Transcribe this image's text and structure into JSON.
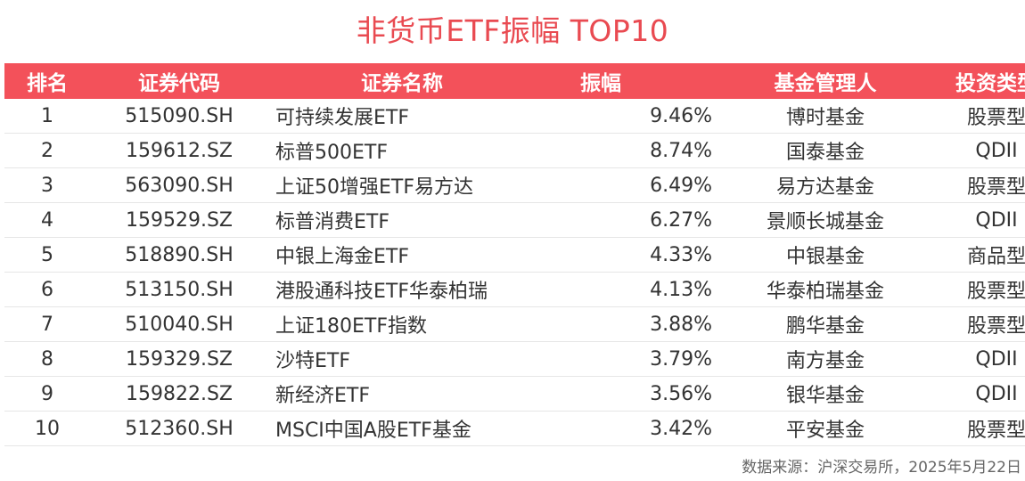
{
  "title": "非货币ETF振幅 TOP10",
  "headers": {
    "rank": "排名",
    "code": "证券代码",
    "name": "证券名称",
    "amplitude": "振幅",
    "manager": "基金管理人",
    "type": "投资类型"
  },
  "rows": [
    {
      "rank": "1",
      "code": "515090.SH",
      "name": "可持续发展ETF",
      "amplitude": "9.46%",
      "manager": "博时基金",
      "type": "股票型"
    },
    {
      "rank": "2",
      "code": "159612.SZ",
      "name": "标普500ETF",
      "amplitude": "8.74%",
      "manager": "国泰基金",
      "type": "QDII"
    },
    {
      "rank": "3",
      "code": "563090.SH",
      "name": "上证50增强ETF易方达",
      "amplitude": "6.49%",
      "manager": "易方达基金",
      "type": "股票型"
    },
    {
      "rank": "4",
      "code": "159529.SZ",
      "name": "标普消费ETF",
      "amplitude": "6.27%",
      "manager": "景顺长城基金",
      "type": "QDII"
    },
    {
      "rank": "5",
      "code": "518890.SH",
      "name": "中银上海金ETF",
      "amplitude": "4.33%",
      "manager": "中银基金",
      "type": "商品型"
    },
    {
      "rank": "6",
      "code": "513150.SH",
      "name": "港股通科技ETF华泰柏瑞",
      "amplitude": "4.13%",
      "manager": "华泰柏瑞基金",
      "type": "股票型"
    },
    {
      "rank": "7",
      "code": "510040.SH",
      "name": "上证180ETF指数",
      "amplitude": "3.88%",
      "manager": "鹏华基金",
      "type": "股票型"
    },
    {
      "rank": "8",
      "code": "159329.SZ",
      "name": "沙特ETF",
      "amplitude": "3.79%",
      "manager": "南方基金",
      "type": "QDII"
    },
    {
      "rank": "9",
      "code": "159822.SZ",
      "name": "新经济ETF",
      "amplitude": "3.56%",
      "manager": "银华基金",
      "type": "QDII"
    },
    {
      "rank": "10",
      "code": "512360.SH",
      "name": "MSCI中国A股ETF基金",
      "amplitude": "3.42%",
      "manager": "平安基金",
      "type": "股票型"
    }
  ],
  "source": "数据来源：沪深交易所，2025年5月22日",
  "colors": {
    "title": "#e94a51",
    "header_bg": "#f3515a",
    "header_text": "#ffffff"
  }
}
